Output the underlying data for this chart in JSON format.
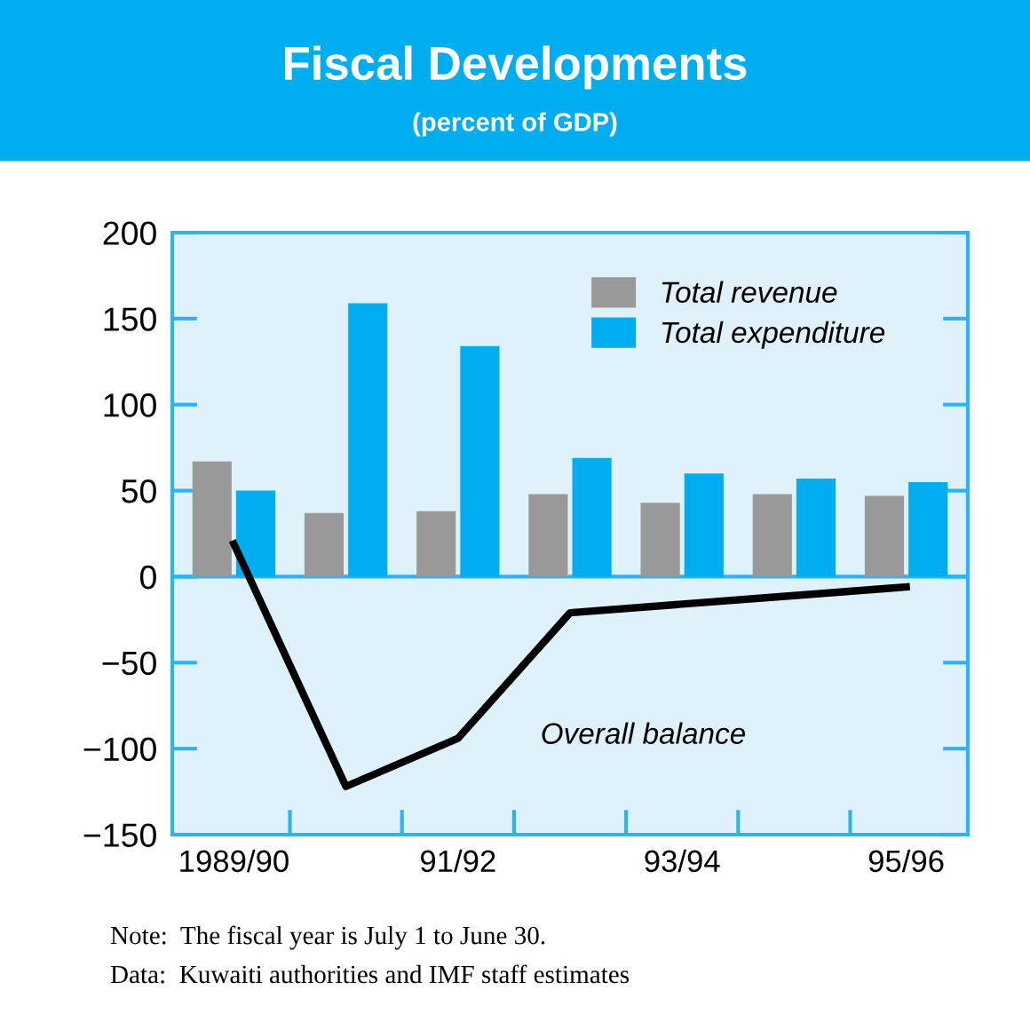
{
  "chart_data": {
    "type": "bar",
    "title": "Fiscal Developments",
    "subtitle": "(percent of GDP)",
    "categories": [
      "1989/90",
      null,
      "91/92",
      null,
      "93/94",
      null,
      "95/96"
    ],
    "series": [
      {
        "name": "Total revenue",
        "color": "#999999",
        "values": [
          67,
          37,
          38,
          48,
          43,
          48,
          47
        ]
      },
      {
        "name": "Total expenditure",
        "color": "#00aeef",
        "values": [
          50,
          159,
          134,
          69,
          60,
          57,
          55
        ]
      },
      {
        "name": "Overall balance",
        "type": "line",
        "color": "#000000",
        "values": [
          19,
          -122,
          -94,
          -21,
          -16,
          -11,
          -6
        ]
      }
    ],
    "ylim": [
      -150,
      200
    ],
    "yticks": [
      -150,
      -100,
      -50,
      0,
      50,
      100,
      150,
      200
    ],
    "ref_lines": [
      {
        "axis": "y",
        "value": 0,
        "color": "#29b6f0"
      }
    ],
    "legend": "top right",
    "grid": false,
    "annotations": [
      "Note:  The fiscal year is July 1 to June 30.",
      "Data:  Kuwaiti authorities and IMF staff estimates"
    ]
  }
}
